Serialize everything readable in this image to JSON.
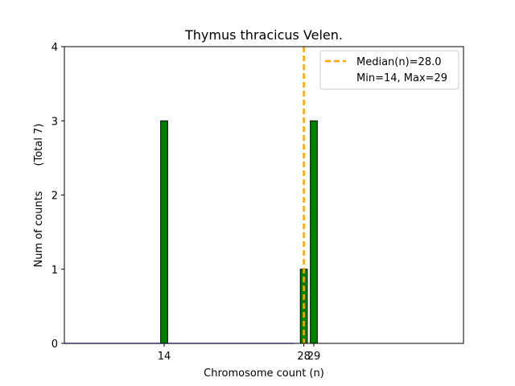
{
  "chart_data": {
    "type": "bar",
    "title": "Thymus thracicus Velen.",
    "xlabel": "Chromosome count (n)",
    "ylabel": "Num of counts",
    "ylabel_note": "(Total 7)",
    "xlim": [
      4,
      44
    ],
    "ylim": [
      0,
      4
    ],
    "yticks": [
      0,
      1,
      2,
      3,
      4
    ],
    "xticks": [
      14,
      28,
      29
    ],
    "bars": [
      {
        "x": 14,
        "value": 3
      },
      {
        "x": 28,
        "value": 1
      },
      {
        "x": 29,
        "value": 3
      }
    ],
    "bar_width": 0.7,
    "baseline_range": [
      4,
      27
    ],
    "median": 28.0,
    "legend": {
      "position": "top-right",
      "entries": [
        "Median(n)=28.0",
        "Min=14, Max=29"
      ]
    },
    "grid": false,
    "colors": {
      "bar_fill": "#008000",
      "bar_edge": "#000000",
      "median_line": "#FFA500",
      "baseline": "#0000ff"
    }
  }
}
